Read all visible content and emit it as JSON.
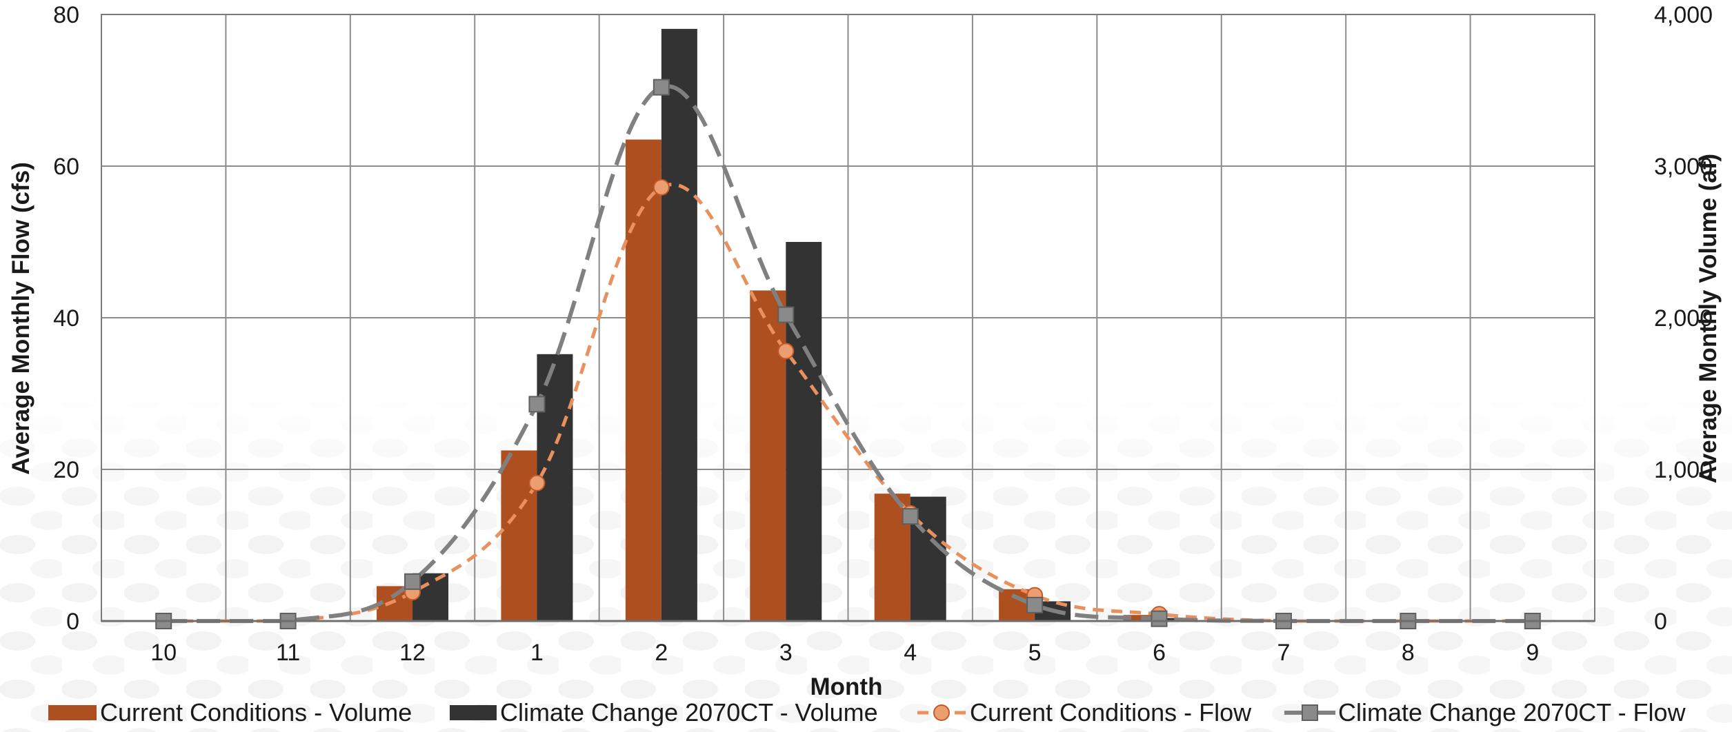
{
  "chart_data": {
    "type": "bar",
    "title": "",
    "xlabel": "Month",
    "ylabel": "Average Monthly Flow (cfs)",
    "y2label": "Average Monthly Volume (af)",
    "categories": [
      "10",
      "11",
      "12",
      "1",
      "2",
      "3",
      "4",
      "5",
      "6",
      "7",
      "8",
      "9"
    ],
    "ylim": [
      0,
      80
    ],
    "y2lim": [
      0,
      4000
    ],
    "yticks": [
      "0",
      "20",
      "40",
      "60",
      "80"
    ],
    "y2ticks": [
      "0",
      "1,000",
      "2,000",
      "3,000",
      "4,000"
    ],
    "grid": true,
    "legend_position": "bottom",
    "series": [
      {
        "name": "Current Conditions - Volume",
        "kind": "bar",
        "axis": "right",
        "color": "#AE4F1F",
        "values": [
          0,
          0,
          230,
          1125,
          3175,
          2180,
          840,
          210,
          40,
          0,
          0,
          0
        ]
      },
      {
        "name": "Climate Change 2070CT - Volume",
        "kind": "bar",
        "axis": "right",
        "color": "#333333",
        "values": [
          0,
          0,
          315,
          1760,
          3905,
          2500,
          820,
          130,
          20,
          0,
          0,
          0
        ]
      },
      {
        "name": "Current Conditions - Flow",
        "kind": "line",
        "axis": "left",
        "color": "#E8915F",
        "values": [
          0,
          0,
          3.8,
          18.2,
          57.2,
          35.6,
          14.2,
          3.4,
          0.9,
          0,
          0,
          0
        ]
      },
      {
        "name": "Climate Change 2070CT - Flow",
        "kind": "line",
        "axis": "left",
        "color": "#808080",
        "values": [
          0,
          0,
          5.2,
          28.6,
          70.4,
          40.4,
          13.8,
          2.1,
          0.3,
          0,
          0,
          0
        ]
      }
    ]
  }
}
